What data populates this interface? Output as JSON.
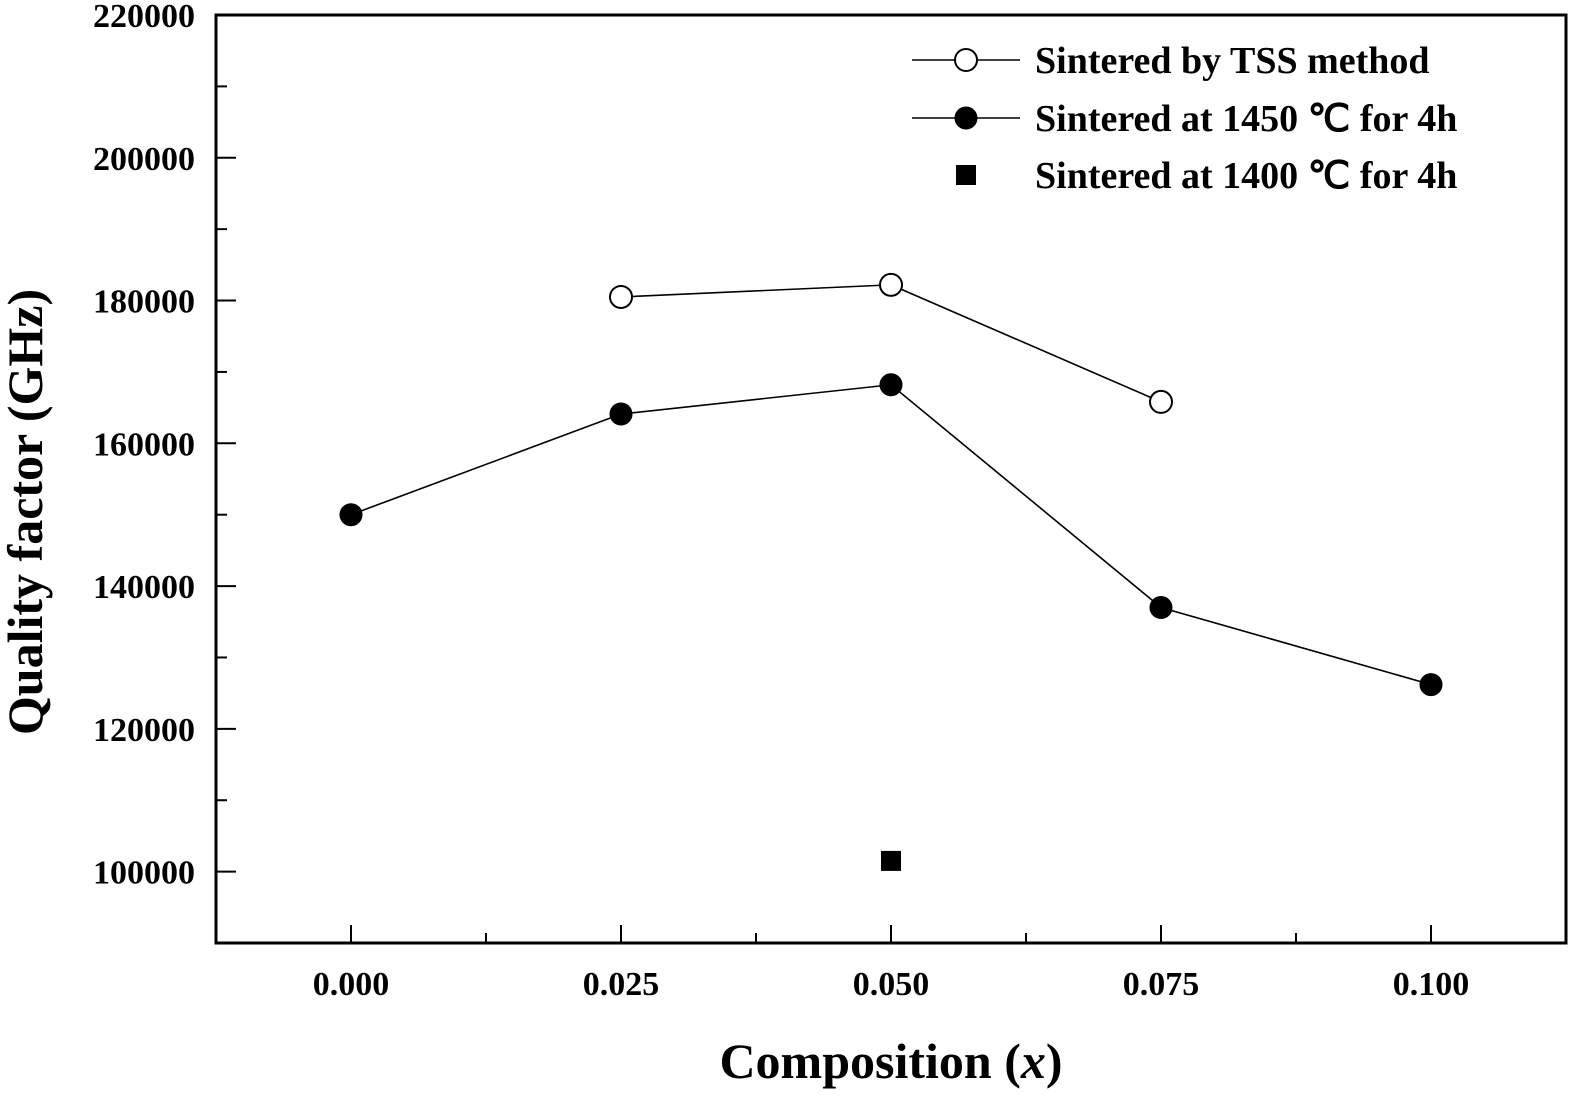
{
  "chart_data": {
    "type": "line",
    "title": "",
    "xlabel": "Composition (x)",
    "xlabel_parts": {
      "prefix": "Composition (",
      "var": "x",
      "suffix": ")"
    },
    "ylabel": "Quality factor (GHz)",
    "xlim": [
      -0.0125,
      0.1125
    ],
    "ylim": [
      90000,
      220000
    ],
    "x_ticks": [
      0.0,
      0.025,
      0.05,
      0.075,
      0.1
    ],
    "x_tick_labels": [
      "0.000",
      "0.025",
      "0.050",
      "0.075",
      "0.100"
    ],
    "x_minor_ticks": [
      0.0125,
      0.0375,
      0.0625,
      0.0875
    ],
    "y_ticks": [
      100000,
      120000,
      140000,
      160000,
      180000,
      200000,
      220000
    ],
    "y_tick_labels": [
      "100000",
      "120000",
      "140000",
      "160000",
      "180000",
      "200000",
      "220000"
    ],
    "y_minor_ticks": [
      110000,
      130000,
      150000,
      170000,
      190000,
      210000
    ],
    "grid": false,
    "legend_position": "top-right",
    "series": [
      {
        "name": "Sintered by TSS method",
        "marker": "open-circle",
        "line": true,
        "x": [
          0.025,
          0.05,
          0.075
        ],
        "y": [
          180500,
          182200,
          165800
        ]
      },
      {
        "name": "Sintered at 1450 ℃ for 4h",
        "marker": "filled-circle",
        "line": true,
        "x": [
          0.0,
          0.025,
          0.05,
          0.075,
          0.1
        ],
        "y": [
          150000,
          164100,
          168200,
          137000,
          126200
        ]
      },
      {
        "name": "Sintered at 1400 ℃ for 4h",
        "marker": "filled-square",
        "line": false,
        "x": [
          0.05
        ],
        "y": [
          101500
        ]
      }
    ],
    "colors": {
      "axis": "#000000",
      "line": "#000000",
      "background": "#ffffff"
    }
  }
}
